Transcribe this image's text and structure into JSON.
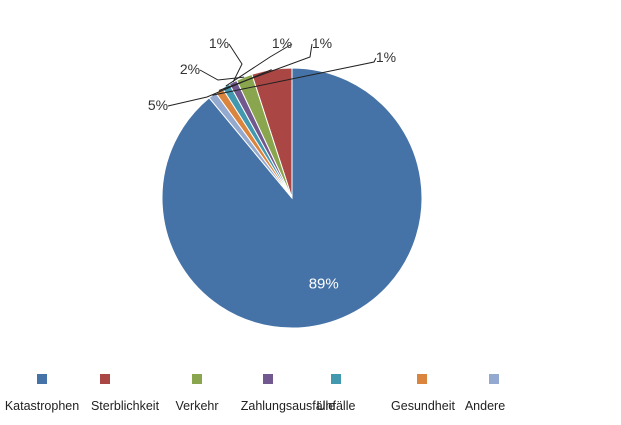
{
  "chart_data": {
    "type": "pie",
    "title": "",
    "categories": [
      "Katastrophen",
      "Sterblichkeit",
      "Verkehr",
      "Zahlungsausfälle",
      "Unfälle",
      "Gesundheit",
      "Andere"
    ],
    "values": [
      89,
      5,
      2,
      1,
      1,
      1,
      1
    ],
    "value_labels": [
      "89%",
      "5%",
      "2%",
      "1%",
      "1%",
      "1%",
      "1%"
    ],
    "colors": [
      "#4572A7",
      "#AA4643",
      "#89A54E",
      "#71588F",
      "#4198AF",
      "#DB843D",
      "#93A9CF"
    ],
    "start_angle_deg": 0,
    "direction": "counterclockwise",
    "legend": "bottom"
  }
}
